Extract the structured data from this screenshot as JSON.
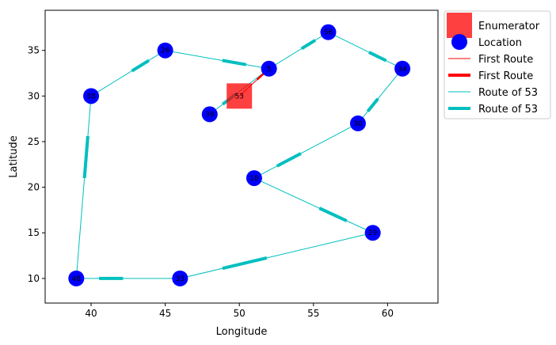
{
  "chart_data": {
    "type": "scatter",
    "xlabel": "Longitude",
    "ylabel": "Latitude",
    "xlim": [
      36.9,
      63.4
    ],
    "ylim": [
      7.3,
      39.4
    ],
    "xticks": [
      40,
      45,
      50,
      55,
      60
    ],
    "yticks": [
      10,
      15,
      20,
      25,
      30,
      35
    ],
    "grid": false,
    "legend_position": "outside-top-right",
    "enumerator": {
      "name": "Enumerator",
      "x": 50,
      "y": 30,
      "label": "53",
      "color": "#ff0000"
    },
    "locations": [
      {
        "id": "5",
        "x": 52,
        "y": 33
      },
      {
        "id": "56",
        "x": 56,
        "y": 37
      },
      {
        "id": "34",
        "x": 61,
        "y": 33
      },
      {
        "id": "30",
        "x": 58,
        "y": 27
      },
      {
        "id": "18",
        "x": 51,
        "y": 21
      },
      {
        "id": "29",
        "x": 59,
        "y": 15
      },
      {
        "id": "33",
        "x": 46,
        "y": 10
      },
      {
        "id": "48",
        "x": 39,
        "y": 10
      },
      {
        "id": "38",
        "x": 40,
        "y": 30
      },
      {
        "id": "26",
        "x": 45,
        "y": 35
      },
      {
        "id": "39",
        "x": 48,
        "y": 28
      }
    ],
    "location_color": "#0000ff",
    "first_route": {
      "name": "First Route",
      "color": "#ff0000",
      "points": [
        [
          50,
          30
        ],
        [
          52,
          33
        ]
      ]
    },
    "route": {
      "name": "Route of 53",
      "color": "#00bfbf",
      "points": [
        [
          52,
          33
        ],
        [
          56,
          37
        ],
        [
          61,
          33
        ],
        [
          58,
          27
        ],
        [
          51,
          21
        ],
        [
          59,
          15
        ],
        [
          46,
          10
        ],
        [
          39,
          10
        ],
        [
          40,
          30
        ],
        [
          45,
          35
        ],
        [
          52,
          33
        ],
        [
          48,
          28
        ]
      ]
    },
    "legend": [
      {
        "label": "Enumerator",
        "marker": "square",
        "color": "#ff0000"
      },
      {
        "label": "Location",
        "marker": "circle",
        "color": "#0000ff"
      },
      {
        "label": "First Route",
        "marker": "thin-line",
        "color": "#ff0000"
      },
      {
        "label": "First Route",
        "marker": "thick-line",
        "color": "#ff0000"
      },
      {
        "label": "Route of 53",
        "marker": "thin-line",
        "color": "#00bfbf"
      },
      {
        "label": "Route of 53",
        "marker": "thick-line",
        "color": "#00bfbf"
      }
    ]
  }
}
